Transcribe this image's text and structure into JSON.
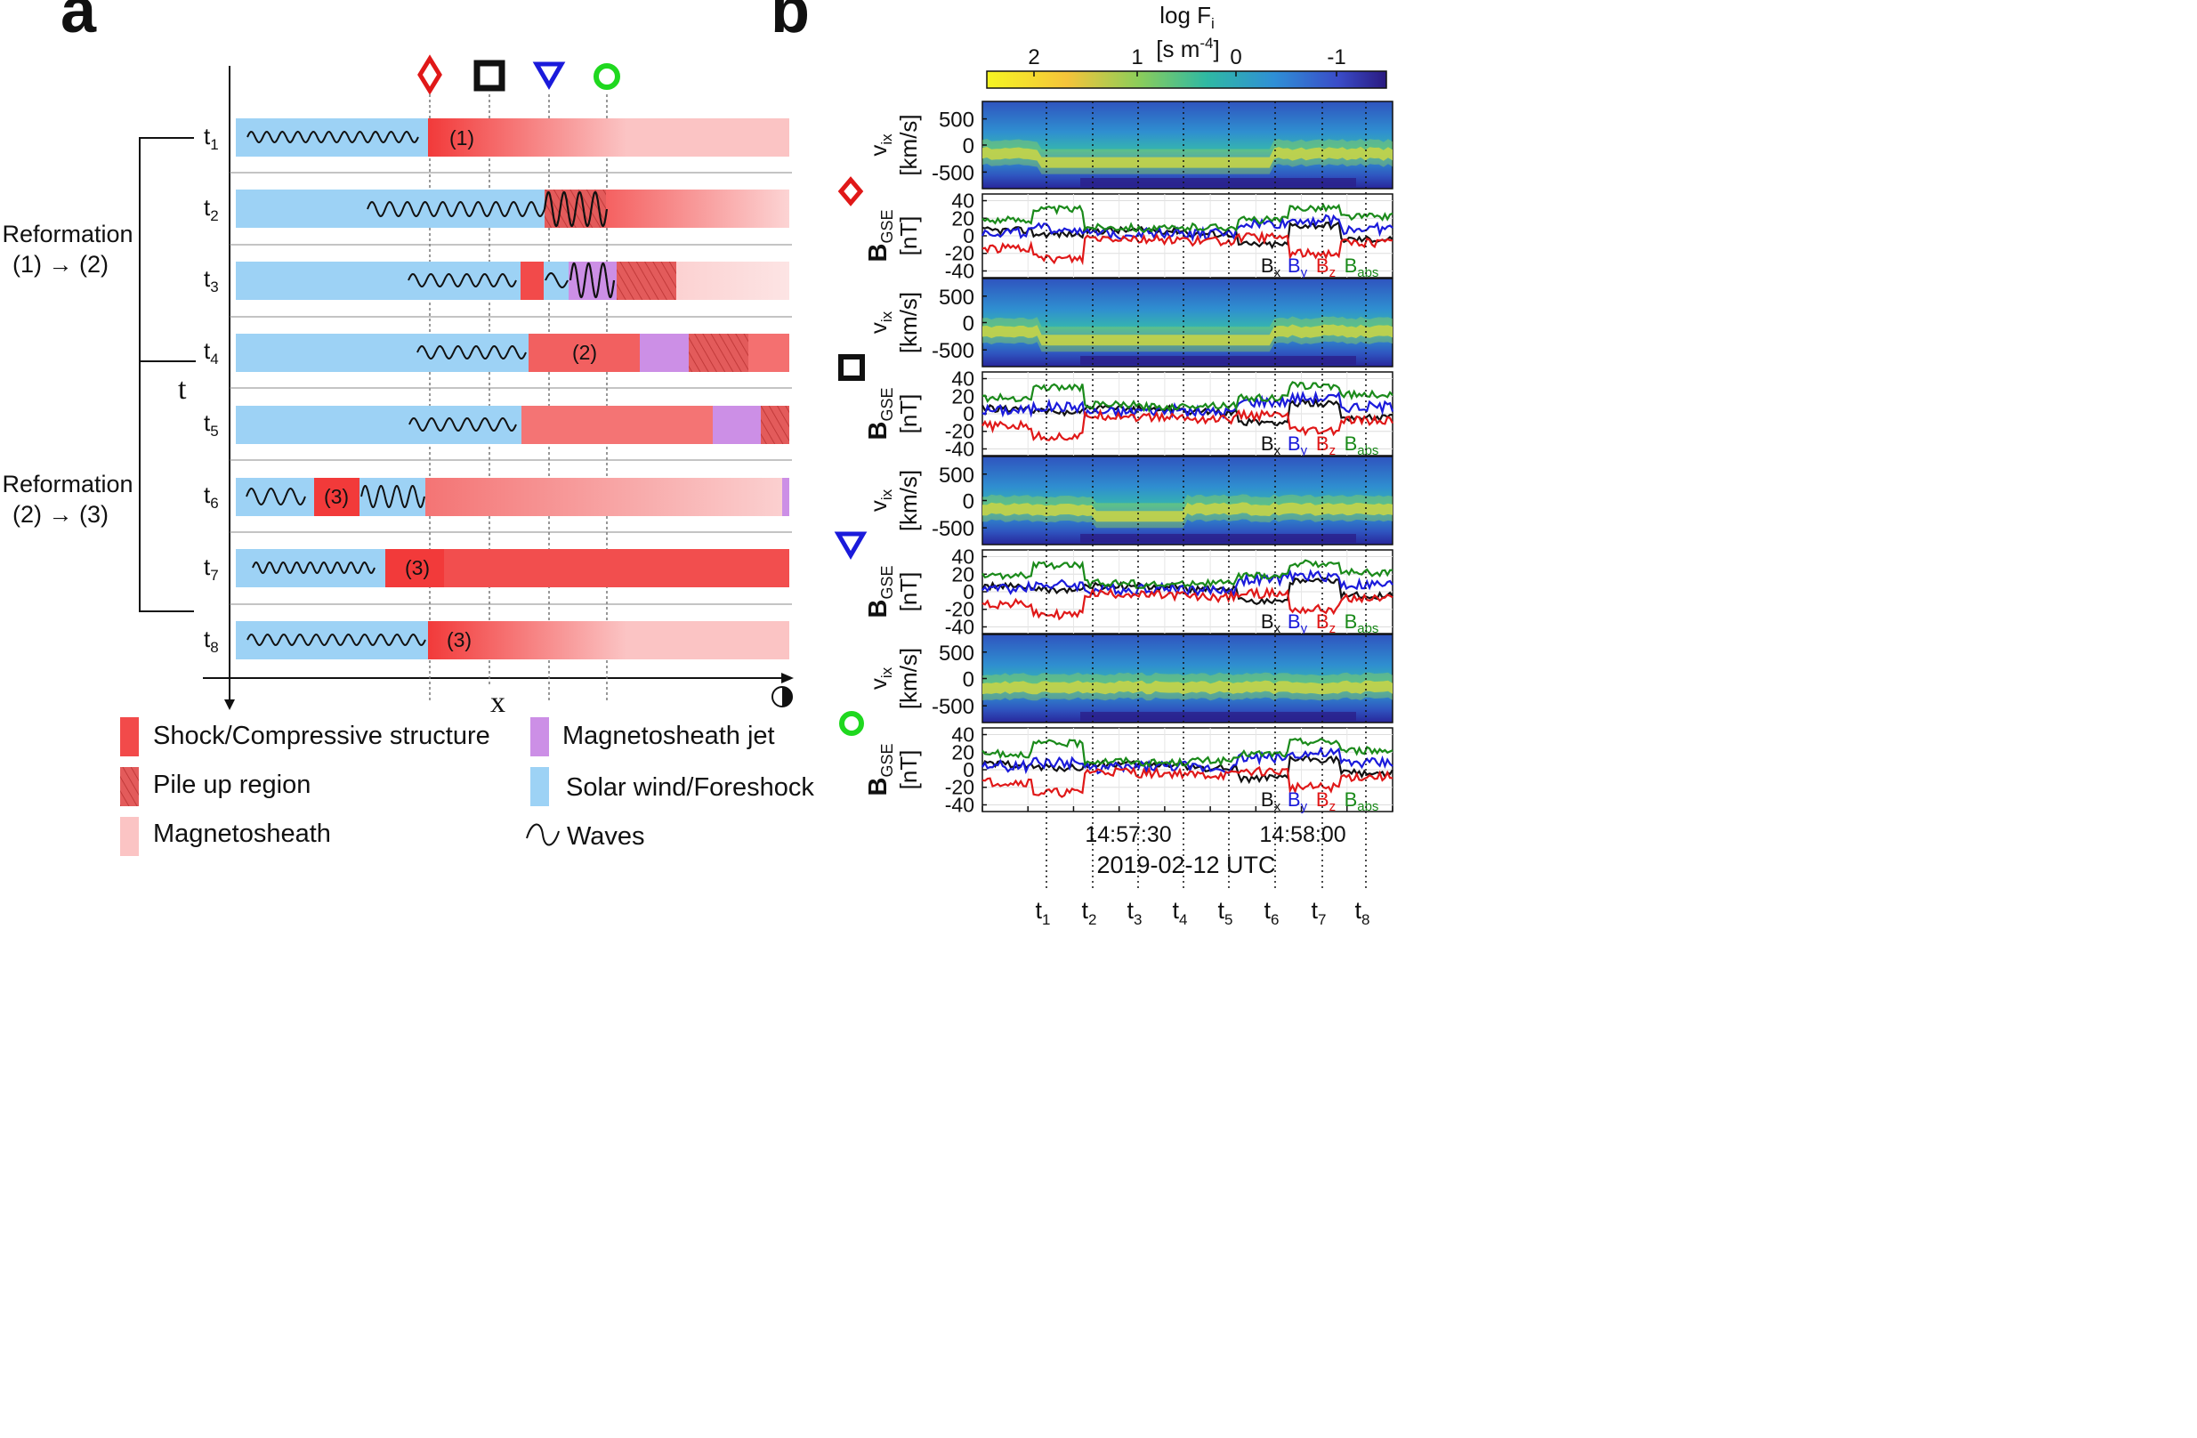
{
  "panel_a": {
    "label": "a",
    "time_labels": [
      "t1",
      "t2",
      "t3",
      "t4",
      "t5",
      "t6",
      "t7",
      "t8"
    ],
    "axis_t": "t",
    "axis_x": "x",
    "reformation_1": "Reformation",
    "reformation_1_sub": "(1) → (2)",
    "reformation_2": "Reformation",
    "reformation_2_sub": "(2) → (3)",
    "structure_labels": {
      "s1": "(1)",
      "s2": "(2)",
      "s3_t6": "(3)",
      "s3_t7": "(3)",
      "s3_t8": "(3)"
    },
    "markers": [
      "diamond",
      "square",
      "triangle",
      "circle"
    ]
  },
  "legend": {
    "shock": "Shock/Compressive structure",
    "pileup": "Pile up region",
    "magnetosheath": "Magnetosheath",
    "jet": "Magnetosheath jet",
    "solarwind": "Solar wind/Foreshock",
    "waves": "Waves"
  },
  "panel_b": {
    "label": "b",
    "colorbar_title": "log F",
    "colorbar_sub": "i",
    "colorbar_unit": "[s m",
    "colorbar_unit_sup": "-4",
    "colorbar_unit_end": "]",
    "colorbar_ticks": [
      "2",
      "1",
      "0",
      "-1"
    ],
    "vix_label": "v",
    "vix_sub": "ix",
    "vix_unit": "[km/s]",
    "vix_ticks": [
      "500",
      "0",
      "-500"
    ],
    "b_label": "B",
    "b_sub": "GSE",
    "b_unit": "[nT]",
    "b_ticks": [
      "40",
      "20",
      "0",
      "-20",
      "-40"
    ],
    "components": [
      {
        "name": "B",
        "sub": "x",
        "color": "#111111"
      },
      {
        "name": "B",
        "sub": "y",
        "color": "#1a1adb"
      },
      {
        "name": "B",
        "sub": "z",
        "color": "#e01818"
      },
      {
        "name": "B",
        "sub": "abs",
        "color": "#1a8a1a"
      }
    ],
    "time_ticks": [
      "14:57:30",
      "14:58:00"
    ],
    "date_label": "2019-02-12 UTC",
    "t_markers": [
      "t1",
      "t2",
      "t3",
      "t4",
      "t5",
      "t6",
      "t7",
      "t8"
    ]
  },
  "colors": {
    "shock": "#f24a4a",
    "sheath": "#fbc4c4",
    "solarwind": "#9dd2f5",
    "jet": "#cc8fe6",
    "diamond": "#e01818",
    "triangle": "#1a1adb",
    "circle": "#1fd81f"
  }
}
